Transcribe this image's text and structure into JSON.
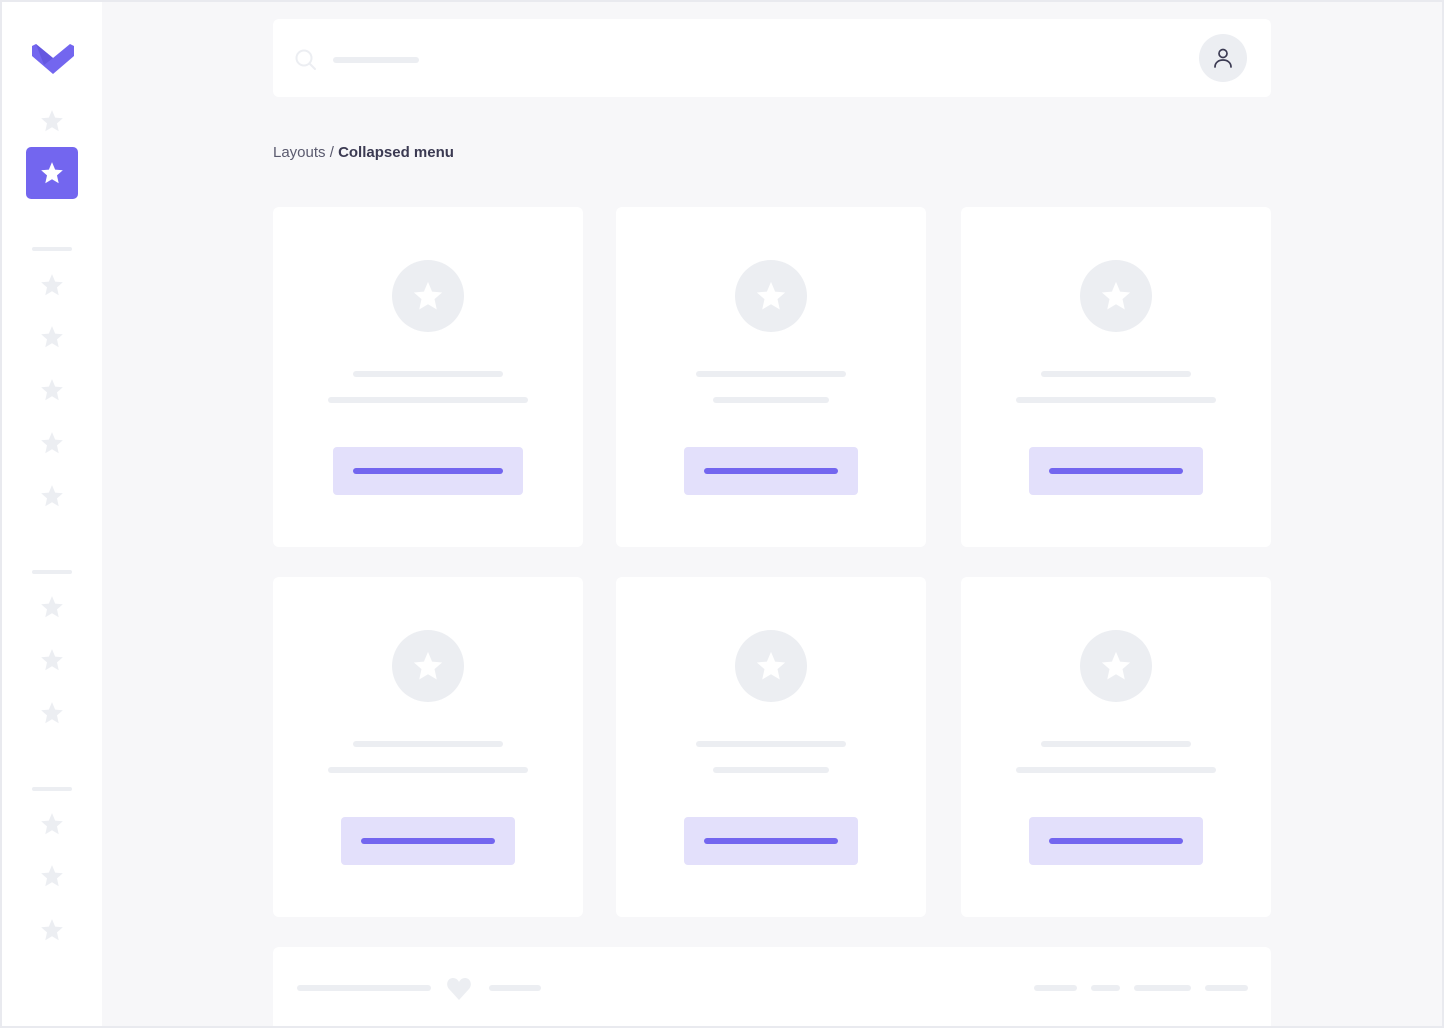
{
  "breadcrumb": {
    "parent": "Layouts",
    "separator": "/",
    "current": "Collapsed menu"
  },
  "colors": {
    "accent": "#7366ef",
    "accent_light": "#e3e0fb",
    "placeholder": "#eceef2",
    "background": "#f7f7f9"
  },
  "sidebar": {
    "logo": "heart-chevron-logo",
    "active_item_index": 1,
    "icon": "star-icon"
  },
  "header": {
    "search_icon": "search-icon",
    "avatar_icon": "user-icon"
  },
  "footer": {
    "icon": "heart-icon"
  }
}
